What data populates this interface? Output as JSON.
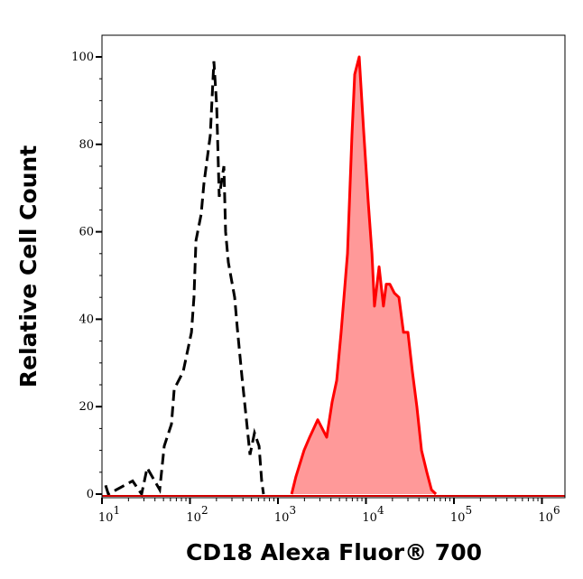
{
  "chart_data": {
    "type": "area",
    "title": "",
    "xlabel": "CD18 Alexa Fluor® 700",
    "ylabel": "Relative Cell Count",
    "x_scale": "log",
    "xlim": [
      10,
      1900000
    ],
    "ylim": [
      -1,
      105
    ],
    "x_ticks": [
      {
        "base": "10",
        "exp": "1",
        "value": 10
      },
      {
        "base": "10",
        "exp": "2",
        "value": 100
      },
      {
        "base": "10",
        "exp": "3",
        "value": 1000
      },
      {
        "base": "10",
        "exp": "4",
        "value": 10000
      },
      {
        "base": "10",
        "exp": "5",
        "value": 100000
      },
      {
        "base": "10",
        "exp": "6",
        "value": 1000000
      }
    ],
    "y_ticks": [
      "0",
      "20",
      "40",
      "60",
      "80",
      "100"
    ],
    "grid": false,
    "legend": "none",
    "series": [
      {
        "style": "dashed-line",
        "color": "#000000",
        "x": [
          11.0,
          11.8,
          22.3,
          28.2,
          32.6,
          45.3,
          51.0,
          61.6,
          66.2,
          83.7,
          104,
          111,
          117,
          134,
          144,
          170,
          187,
          201,
          215,
          243,
          254,
          273,
          322,
          345,
          389,
          438,
          481,
          541,
          610,
          653,
          685
        ],
        "y": [
          2,
          0,
          3,
          0,
          6,
          1,
          11,
          16,
          24,
          28,
          37,
          45,
          58,
          64,
          71,
          82,
          99,
          89,
          68,
          75,
          60,
          53,
          45,
          38,
          27,
          17,
          9,
          14,
          11,
          3,
          0
        ]
      },
      {
        "style": "filled",
        "color": "#ff0000",
        "fill": "#ff9999",
        "x": [
          1430,
          1600,
          1980,
          2290,
          2830,
          3580,
          4120,
          4650,
          5220,
          6170,
          6930,
          7450,
          8380,
          9420,
          10600,
          11700,
          12500,
          14100,
          15800,
          17000,
          18700,
          21000,
          23700,
          26700,
          30000,
          33700,
          37900,
          42800,
          49200,
          55500,
          62400
        ],
        "y": [
          0,
          4,
          10,
          13,
          17,
          13,
          21,
          26,
          37,
          55,
          82,
          96,
          100,
          83,
          67,
          55,
          43,
          52,
          43,
          48,
          48,
          46,
          45,
          37,
          37,
          28,
          20,
          10,
          5,
          1,
          0
        ]
      }
    ]
  }
}
